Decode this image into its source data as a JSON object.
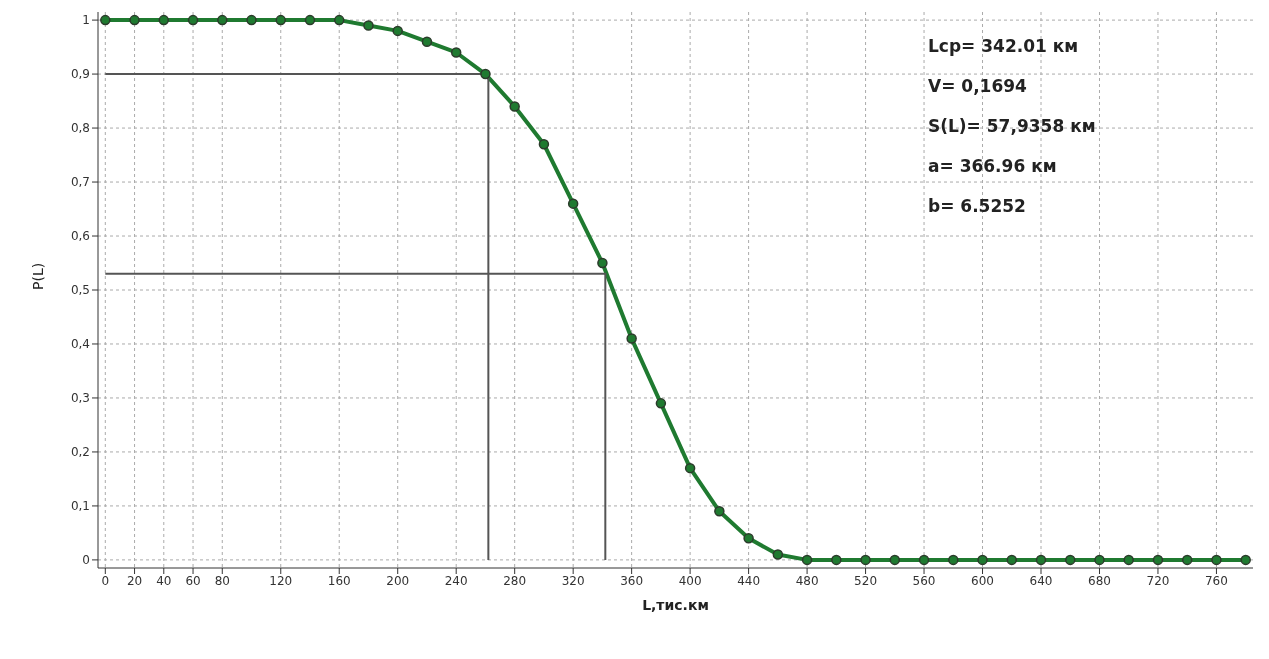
{
  "chart_data": {
    "type": "line",
    "xlabel": "L,тис.км",
    "ylabel": "P(L)",
    "x": [
      0,
      20,
      40,
      60,
      80,
      100,
      120,
      140,
      160,
      180,
      200,
      220,
      240,
      260,
      280,
      300,
      320,
      340,
      360,
      380,
      400,
      420,
      440,
      460,
      480,
      500,
      520,
      540,
      560,
      580,
      600,
      620,
      640,
      660,
      680,
      700,
      720,
      740,
      760,
      780
    ],
    "series": [
      {
        "color": "#1f7a30",
        "values": [
          1,
          1,
          1,
          1,
          1,
          1,
          1,
          1,
          1,
          0.99,
          0.98,
          0.96,
          0.94,
          0.9,
          0.84,
          0.77,
          0.66,
          0.55,
          0.41,
          0.29,
          0.17,
          0.09,
          0.04,
          0.01,
          0,
          0,
          0,
          0,
          0,
          0,
          0,
          0,
          0,
          0,
          0,
          0,
          0,
          0,
          0,
          0
        ]
      },
      {
        "type": "line",
        "color": "#555555",
        "marker": "none",
        "x": [
          0,
          262,
          262
        ],
        "values": [
          0.9,
          0.9,
          0
        ]
      },
      {
        "type": "line",
        "color": "#555555",
        "marker": "none",
        "x": [
          0,
          342,
          342
        ],
        "values": [
          0.53,
          0.53,
          0
        ]
      }
    ],
    "xlim": [
      -5,
      785
    ],
    "ylim": [
      -0.015,
      1.015
    ],
    "xticks": [
      0,
      20,
      40,
      60,
      80,
      120,
      160,
      200,
      240,
      280,
      320,
      360,
      400,
      440,
      480,
      520,
      560,
      600,
      640,
      680,
      720,
      760
    ],
    "yticks": [
      0,
      {
        "value": 0.1,
        "label": "0,1"
      },
      {
        "value": 0.2,
        "label": "0,2"
      },
      {
        "value": 0.3,
        "label": "0,3"
      },
      {
        "value": 0.4,
        "label": "0,4"
      },
      {
        "value": 0.5,
        "label": "0,5"
      },
      {
        "value": 0.6,
        "label": "0,6"
      },
      {
        "value": 0.7,
        "label": "0,7"
      },
      {
        "value": 0.8,
        "label": "0,8"
      },
      {
        "value": 0.9,
        "label": "0,9"
      },
      1
    ],
    "grid": true,
    "marker": "circle",
    "line_style": "solid",
    "annotations": [
      "Lcp= 342.01 км",
      "V= 0,1694",
      "S(L)= 57,9358 км",
      "a= 366.96 км",
      "b= 6.5252"
    ]
  }
}
